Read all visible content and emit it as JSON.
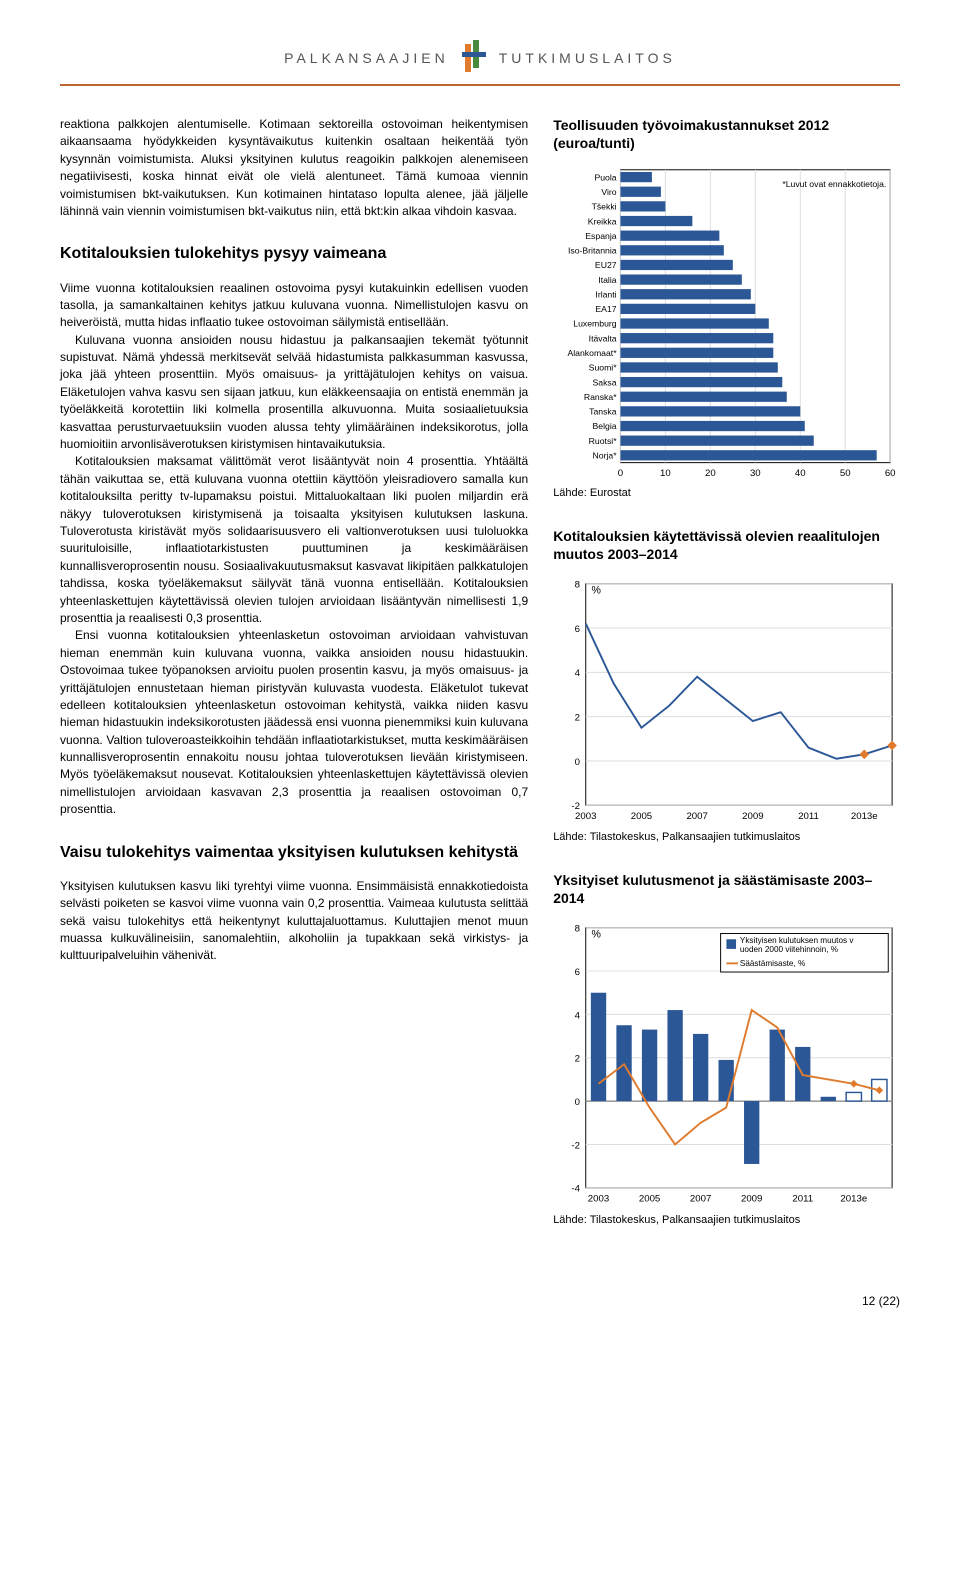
{
  "header": {
    "left": "PALKANSAAJIEN",
    "right": "TUTKIMUSLAITOS"
  },
  "body": {
    "p1": "reaktiona palkkojen alentumiselle. Kotimaan sektoreilla ostovoiman heikentymisen aikaansaama hyödykkeiden kysyntävaikutus kuitenkin osaltaan heikentää työn kysynnän voimistumista. Aluksi yksityinen kulutus reagoikin palkkojen alenemiseen negatiivisesti, koska hinnat eivät ole vielä alentuneet. Tämä kumoaa viennin voimistumisen bkt-vaikutuksen. Kun kotimainen hintataso lopulta alenee, jää jäljelle lähinnä vain viennin voimistumisen bkt-vaikutus niin, että bkt:kin alkaa vihdoin kasvaa.",
    "h1": "Kotitalouksien tulokehitys pysyy vaimeana",
    "p2": "Viime vuonna kotitalouksien reaalinen ostovoima pysyi kutakuinkin edellisen vuoden tasolla, ja samankaltainen kehitys jatkuu kuluvana vuonna. Nimellistulojen kasvu on heiveröistä, mutta hidas inflaatio tukee ostovoiman säilymistä entisellään.",
    "p3": "Kuluvana vuonna ansioiden nousu hidastuu ja palkansaajien tekemät työtunnit supistuvat. Nämä yhdessä merkitsevät selvää hidastumista palkkasumman kasvussa, joka jää yhteen prosenttiin. Myös omaisuus- ja yrittäjätulojen kehitys on vaisua. Eläketulojen vahva kasvu sen sijaan jatkuu, kun eläkkeensaajia on entistä enemmän ja työeläkkeitä korotettiin liki kolmella prosentilla alkuvuonna. Muita sosiaalietuuksia kasvattaa perusturvaetuuksiin vuoden alussa tehty ylimääräinen indeksikorotus, jolla huomioitiin arvonlisäverotuksen kiristymisen hintavaikutuksia.",
    "p4": "Kotitalouksien maksamat välittömät verot lisääntyvät noin 4 prosenttia. Yhtäältä tähän vaikuttaa se, että kuluvana vuonna otettiin käyttöön yleisradiovero samalla kun kotitalouksilta peritty tv-lupamaksu poistui. Mittaluokaltaan liki puolen miljardin erä näkyy tuloverotuksen kiristymisenä ja toisaalta yksityisen kulutuksen laskuna. Tuloverotusta kiristävät myös solidaarisuusvero eli valtionverotuksen uusi tuloluokka suurituloisille, inflaatiotarkistusten puuttuminen ja keskimääräisen kunnallisveroprosentin nousu. Sosiaalivakuutusmaksut kasvavat likipitäen palkkatulojen tahdissa, koska työeläkemaksut säilyvät tänä vuonna entisellään. Kotitalouksien yhteenlaskettujen käytettävissä olevien tulojen arvioidaan lisääntyvän nimellisesti 1,9 prosenttia ja reaalisesti 0,3 prosenttia.",
    "p5": "Ensi vuonna kotitalouksien yhteenlasketun ostovoiman arvioidaan vahvistuvan hieman enemmän kuin kuluvana vuonna, vaikka ansioiden nousu hidastuukin. Ostovoimaa tukee työpanoksen arvioitu puolen prosentin kasvu, ja myös omaisuus- ja yrittäjätulojen ennustetaan hieman piristyvän kuluvasta vuodesta. Eläketulot tukevat edelleen kotitalouksien yhteenlasketun ostovoiman kehitystä, vaikka niiden kasvu hieman hidastuukin indeksikorotusten jäädessä ensi vuonna pienemmiksi kuin kuluvana vuonna. Valtion tuloveroasteikkoihin tehdään inflaatiotarkistukset, mutta keskimääräisen kunnallisveroprosentin ennakoitu nousu johtaa tuloverotuksen lievään kiristymiseen. Myös työeläkemaksut nousevat. Kotitalouksien yhteenlaskettujen käytettävissä olevien nimellistulojen arvioidaan kasvavan 2,3 prosenttia ja reaalisen ostovoiman 0,7 prosenttia.",
    "h2": "Vaisu tulokehitys vaimentaa yksityisen kulutuksen kehitystä",
    "p6": "Yksityisen kulutuksen kasvu liki tyrehtyi viime vuonna. Ensimmäisistä ennakkotiedoista selvästi poiketen se kasvoi viime vuonna vain 0,2 prosenttia. Vaimeaa kulutusta selittää sekä vaisu tulokehitys että heikentynyt kuluttajaluottamus. Kuluttajien menot muun muassa kulkuvälineisiin, sanomalehtiin, alkoholiin ja tupakkaan sekä virkistys- ja kulttuuripalveluihin vähenivät."
  },
  "chart1": {
    "title": "Teollisuuden työvoimakustannukset 2012 (euroa/tunti)",
    "note": "*Luvut ovat ennakkotietoja.",
    "source": "Lähde: Eurostat",
    "type": "bar-horizontal",
    "bar_color": "#2b5797",
    "axis_color": "#000000",
    "grid_color": "#dddddd",
    "label_fontsize": 9,
    "xmax": 60,
    "xtick_step": 10,
    "categories": [
      "Puola",
      "Viro",
      "Tšekki",
      "Kreikka",
      "Espanja",
      "Iso-Britannia",
      "EU27",
      "Italia",
      "Irlanti",
      "EA17",
      "Luxemburg",
      "Itävalta",
      "Alankomaat*",
      "Suomi*",
      "Saksa",
      "Ranska*",
      "Tanska",
      "Belgia",
      "Ruotsi*",
      "Norja*"
    ],
    "values": [
      7,
      9,
      10,
      16,
      22,
      23,
      25,
      27,
      29,
      30,
      33,
      34,
      34,
      35,
      36,
      37,
      40,
      41,
      43,
      57
    ]
  },
  "chart2": {
    "title": "Kotitalouksien käytettävissä olevien reaalitulojen muutos 2003–2014",
    "source": "Lähde: Tilastokeskus, Palkansaajien tutkimuslaitos",
    "type": "line",
    "ylabel": "%",
    "line_color": "#2b5797",
    "marker_color": "#e07b2e",
    "axis_color": "#000000",
    "ymin": -2,
    "ymax": 8,
    "ytick_step": 2,
    "xticks": [
      "2003",
      "2005",
      "2007",
      "2009",
      "2011",
      "2013e"
    ],
    "years": [
      2003,
      2004,
      2005,
      2006,
      2007,
      2008,
      2009,
      2010,
      2011,
      2012,
      2013,
      2014
    ],
    "values": [
      6.2,
      3.5,
      1.5,
      2.5,
      3.8,
      2.8,
      1.8,
      2.2,
      0.6,
      0.1,
      0.3,
      0.7
    ],
    "forecast_from_index": 10
  },
  "chart3": {
    "title": "Yksityiset kulutusmenot ja säästämisaste 2003–2014",
    "source": "Lähde: Tilastokeskus, Palkansaajien tutkimuslaitos",
    "type": "bar-line",
    "ylabel": "%",
    "bar_color": "#2b5797",
    "line_color": "#e07b2e",
    "marker_color": "#e07b2e",
    "axis_color": "#000000",
    "ymin": -4,
    "ymax": 8,
    "ytick_step": 2,
    "xticks": [
      "2003",
      "2005",
      "2007",
      "2009",
      "2011",
      "2013e"
    ],
    "legend": {
      "bar": "Yksityisen kulutuksen muutos vuoden 2000 viitehinnoin, %",
      "line": "Säästämisaste, %"
    },
    "years": [
      2003,
      2004,
      2005,
      2006,
      2007,
      2008,
      2009,
      2010,
      2011,
      2012,
      2013,
      2014
    ],
    "bar_values": [
      5.0,
      3.5,
      3.3,
      4.2,
      3.1,
      1.9,
      -2.9,
      3.3,
      2.5,
      0.2,
      0.4,
      1.0
    ],
    "line_values": [
      0.8,
      1.7,
      -0.3,
      -2.0,
      -1.0,
      -0.3,
      4.2,
      3.4,
      1.2,
      1.0,
      0.8,
      0.5
    ],
    "forecast_from_index": 10
  },
  "footer": "12 (22)"
}
